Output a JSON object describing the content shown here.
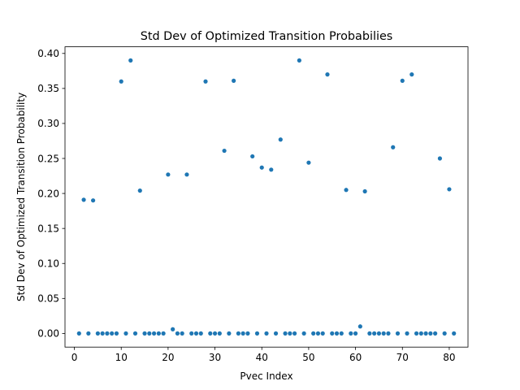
{
  "chart_data": {
    "type": "scatter",
    "title": "Std Dev of Optimized Transition Probabilies",
    "xlabel": "Pvec Index",
    "ylabel": "Std Dev of Optimized Transition Probability",
    "xlim": [
      -2,
      84
    ],
    "ylim": [
      -0.0195,
      0.4095
    ],
    "xticks": [
      0,
      10,
      20,
      30,
      40,
      50,
      60,
      70,
      80
    ],
    "yticks": [
      0.0,
      0.05,
      0.1,
      0.15,
      0.2,
      0.25,
      0.3,
      0.35,
      0.4
    ],
    "xtick_labels": [
      "0",
      "10",
      "20",
      "30",
      "40",
      "50",
      "60",
      "70",
      "80"
    ],
    "ytick_labels": [
      "0.00",
      "0.05",
      "0.10",
      "0.15",
      "0.20",
      "0.25",
      "0.30",
      "0.35",
      "0.40"
    ],
    "grid": false,
    "marker_color": "#1f77b4",
    "x": [
      1,
      2,
      3,
      4,
      5,
      6,
      7,
      8,
      9,
      10,
      11,
      12,
      13,
      14,
      15,
      16,
      17,
      18,
      19,
      20,
      21,
      22,
      23,
      24,
      25,
      26,
      27,
      28,
      29,
      30,
      31,
      32,
      33,
      34,
      35,
      36,
      37,
      38,
      39,
      40,
      41,
      42,
      43,
      44,
      45,
      46,
      47,
      48,
      49,
      50,
      51,
      52,
      53,
      54,
      55,
      56,
      57,
      58,
      59,
      60,
      61,
      62,
      63,
      64,
      65,
      66,
      67,
      68,
      69,
      70,
      71,
      72,
      73,
      74,
      75,
      76,
      77,
      78,
      79,
      80,
      81
    ],
    "y": [
      0.0,
      0.191,
      0.0,
      0.19,
      0.0,
      0.0,
      0.0,
      0.0,
      0.0,
      0.36,
      0.0,
      0.39,
      0.0,
      0.204,
      0.0,
      0.0,
      0.0,
      0.0,
      0.0,
      0.227,
      0.006,
      0.0,
      0.0,
      0.227,
      0.0,
      0.0,
      0.0,
      0.36,
      0.0,
      0.0,
      0.0,
      0.261,
      0.0,
      0.361,
      0.0,
      0.0,
      0.0,
      0.253,
      0.0,
      0.237,
      0.0,
      0.234,
      0.0,
      0.277,
      0.0,
      0.0,
      0.0,
      0.39,
      0.0,
      0.244,
      0.0,
      0.0,
      0.0,
      0.37,
      0.0,
      0.0,
      0.0,
      0.205,
      0.0,
      0.0,
      0.01,
      0.203,
      0.0,
      0.0,
      0.0,
      0.0,
      0.0,
      0.266,
      0.0,
      0.361,
      0.0,
      0.37,
      0.0,
      0.0,
      0.0,
      0.0,
      0.0,
      0.25,
      0.0,
      0.206,
      0.0
    ]
  }
}
